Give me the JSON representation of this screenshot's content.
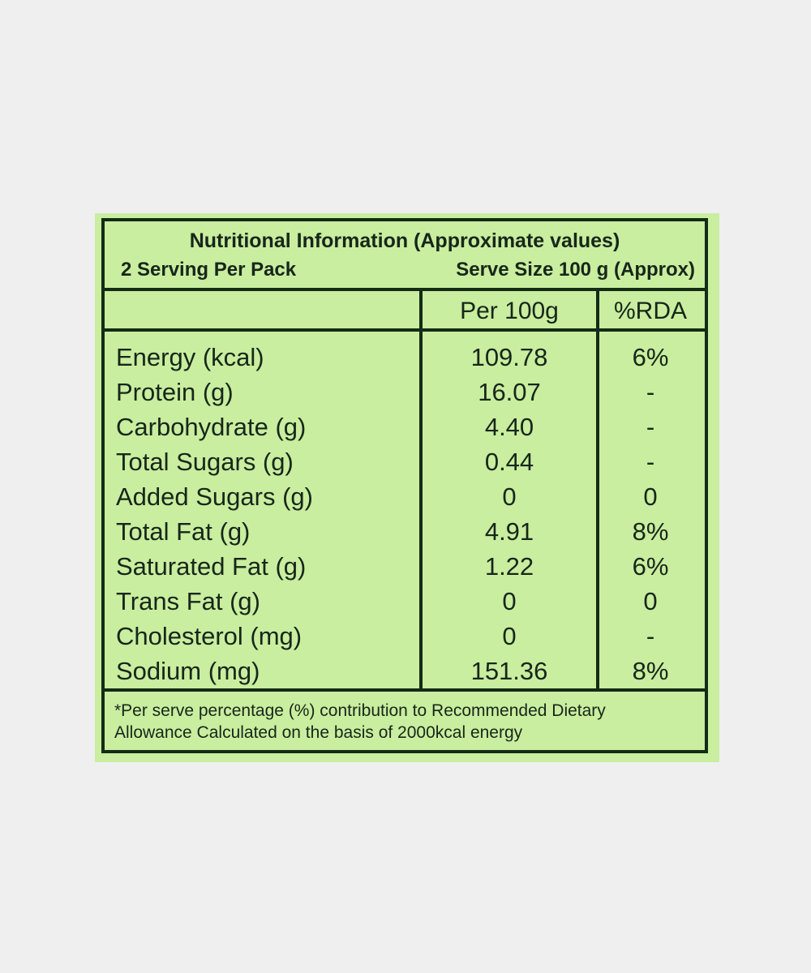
{
  "header": {
    "title": "Nutritional Information (Approximate values)",
    "servings": "2 Serving Per Pack",
    "serve_size": "Serve Size 100 g (Approx)"
  },
  "table": {
    "columns": [
      "Per 100g",
      "%RDA"
    ],
    "rows": [
      [
        "Energy (kcal)",
        "109.78",
        "6%"
      ],
      [
        "Protein (g)",
        "16.07",
        "-"
      ],
      [
        "Carbohydrate (g)",
        "4.40",
        "-"
      ],
      [
        "Total Sugars (g)",
        "0.44",
        "-"
      ],
      [
        "Added Sugars (g)",
        "0",
        "0"
      ],
      [
        "Total Fat (g)",
        "4.91",
        "8%"
      ],
      [
        "Saturated  Fat (g)",
        "1.22",
        "6%"
      ],
      [
        "Trans Fat (g)",
        "0",
        "0"
      ],
      [
        "Cholesterol (mg)",
        "0",
        "-"
      ],
      [
        "Sodium (mg)",
        "151.36",
        "8%"
      ]
    ]
  },
  "footnote": [
    "*Per serve percentage (%) contribution to Recommended Dietary",
    "Allowance Calculated on the basis of 2000kcal energy"
  ]
}
